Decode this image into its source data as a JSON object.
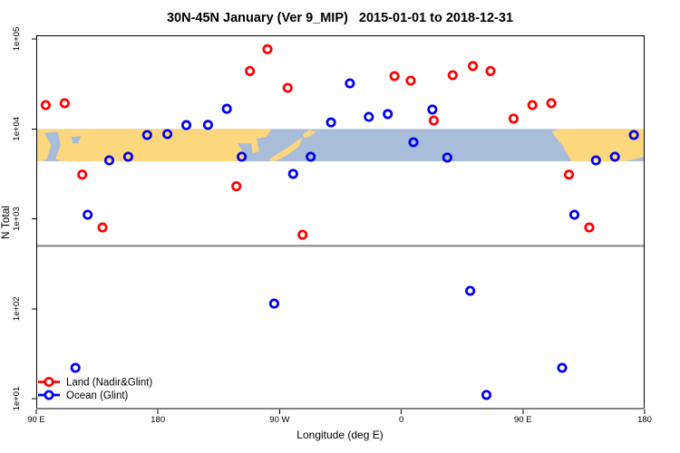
{
  "title": "30N-45N January (Ver 9_MIP)   2015-01-01 to 2018-12-31",
  "chart_data": {
    "type": "scatter",
    "xlabel": "Longitude (deg E)",
    "ylabel": "N Total",
    "y_scale": "log",
    "x_axis": {
      "min_deg": 90,
      "max_deg": 540,
      "ticks": [
        {
          "axis_deg": 90,
          "label": "90 E"
        },
        {
          "axis_deg": 180,
          "label": "180"
        },
        {
          "axis_deg": 270,
          "label": "90 W"
        },
        {
          "axis_deg": 360,
          "label": "0"
        },
        {
          "axis_deg": 450,
          "label": "90 E"
        },
        {
          "axis_deg": 540,
          "label": "180"
        }
      ]
    },
    "y_axis": {
      "ticks": [
        {
          "value": 100000,
          "label": "1e+05"
        },
        {
          "value": 10000,
          "label": "1e+04"
        },
        {
          "value": 1000,
          "label": "1e+03"
        },
        {
          "value": 100,
          "label": "1e+02"
        },
        {
          "value": 10,
          "label": "1e+01"
        }
      ]
    },
    "reference_line": {
      "value": 500,
      "color": "#808080"
    },
    "axis_colors": {
      "box": "#000000",
      "baseline": "#808080"
    },
    "series": [
      {
        "name": "Land (Nadir&Glint)",
        "color": "#ff0000",
        "points": [
          {
            "x_deg": 97,
            "value": 18400
          },
          {
            "x_deg": 111,
            "value": 19300
          },
          {
            "x_deg": 124,
            "value": 3100
          },
          {
            "x_deg": 139,
            "value": 800
          },
          {
            "x_deg": 238,
            "value": 2300
          },
          {
            "x_deg": 248,
            "value": 44000
          },
          {
            "x_deg": 261,
            "value": 77000
          },
          {
            "x_deg": 276,
            "value": 28600
          },
          {
            "x_deg": 287,
            "value": 665
          },
          {
            "x_deg": 355,
            "value": 38600
          },
          {
            "x_deg": 367,
            "value": 34400
          },
          {
            "x_deg": 384,
            "value": 12400
          },
          {
            "x_deg": 398,
            "value": 39500
          },
          {
            "x_deg": 413,
            "value": 50000
          },
          {
            "x_deg": 426,
            "value": 44000
          },
          {
            "x_deg": 443,
            "value": 13000
          },
          {
            "x_deg": 457,
            "value": 18400
          },
          {
            "x_deg": 471,
            "value": 19300
          },
          {
            "x_deg": 484,
            "value": 3100
          },
          {
            "x_deg": 499,
            "value": 800
          }
        ]
      },
      {
        "name": "Ocean (Glint)",
        "color": "#0000ee",
        "points": [
          {
            "x_deg": 119,
            "value": 22
          },
          {
            "x_deg": 128,
            "value": 1110
          },
          {
            "x_deg": 144,
            "value": 4470
          },
          {
            "x_deg": 158,
            "value": 4900
          },
          {
            "x_deg": 172,
            "value": 8550
          },
          {
            "x_deg": 187,
            "value": 8750
          },
          {
            "x_deg": 201,
            "value": 11000
          },
          {
            "x_deg": 217,
            "value": 11100
          },
          {
            "x_deg": 231,
            "value": 16700
          },
          {
            "x_deg": 242,
            "value": 4900
          },
          {
            "x_deg": 266,
            "value": 114
          },
          {
            "x_deg": 280,
            "value": 3160
          },
          {
            "x_deg": 293,
            "value": 4900
          },
          {
            "x_deg": 308,
            "value": 11800
          },
          {
            "x_deg": 322,
            "value": 32100
          },
          {
            "x_deg": 336,
            "value": 13600
          },
          {
            "x_deg": 350,
            "value": 14600
          },
          {
            "x_deg": 369,
            "value": 7100
          },
          {
            "x_deg": 383,
            "value": 16400
          },
          {
            "x_deg": 394,
            "value": 4800
          },
          {
            "x_deg": 411,
            "value": 158
          },
          {
            "x_deg": 423,
            "value": 11
          },
          {
            "x_deg": 479,
            "value": 22
          },
          {
            "x_deg": 488,
            "value": 1110
          },
          {
            "x_deg": 504,
            "value": 4470
          },
          {
            "x_deg": 518,
            "value": 4900
          },
          {
            "x_deg": 532,
            "value": 8550
          }
        ]
      }
    ],
    "map_band": {
      "top_value": 10000,
      "bottom_value": 4365,
      "land_color": "#fcd77e",
      "ocean_color": "#a9bcd9",
      "polygons": [
        {
          "name": "eurasia-landmass",
          "fill": "land",
          "pts": [
            [
              -10,
              0.3
            ],
            [
              -6,
              0.05
            ],
            [
              5,
              0
            ],
            [
              132,
              0
            ],
            [
              130,
              0.25
            ],
            [
              126.5,
              0.3
            ],
            [
              127.5,
              0.7
            ],
            [
              125,
              0.75
            ],
            [
              124.5,
              0.45
            ],
            [
              119.5,
              0.45
            ],
            [
              122,
              0.8
            ],
            [
              121,
              1
            ],
            [
              -7.5,
              1
            ]
          ]
        },
        {
          "name": "north-america",
          "fill": "land",
          "pts": [
            [
              -124.5,
              0.08
            ],
            [
              -121,
              0
            ],
            [
              -67.5,
              0
            ],
            [
              -70,
              0.3
            ],
            [
              -76,
              0.65
            ],
            [
              -80,
              1
            ],
            [
              -117,
              1
            ],
            [
              -120.5,
              0.5
            ],
            [
              -123,
              0.25
            ]
          ]
        },
        {
          "name": "mediterranean-sea",
          "fill": "ocean",
          "pts": [
            [
              -5,
              0.5
            ],
            [
              3,
              0.42
            ],
            [
              10,
              0.5
            ],
            [
              12,
              0.68
            ],
            [
              16,
              0.55
            ],
            [
              20,
              0.68
            ],
            [
              26,
              0.5
            ],
            [
              33,
              0.52
            ],
            [
              36,
              0.65
            ],
            [
              36.5,
              0.95
            ],
            [
              24,
              1
            ],
            [
              10,
              1
            ],
            [
              0,
              0.92
            ],
            [
              -5.5,
              0.7
            ]
          ]
        },
        {
          "name": "black-sea",
          "fill": "ocean",
          "pts": [
            [
              27,
              0.12
            ],
            [
              34,
              0.04
            ],
            [
              42,
              0.12
            ],
            [
              40,
              0.35
            ],
            [
              30,
              0.3
            ]
          ]
        },
        {
          "name": "caspian-sea",
          "fill": "ocean",
          "pts": [
            [
              48,
              0.12
            ],
            [
              53,
              0.1
            ],
            [
              54,
              0.5
            ],
            [
              52,
              0.95
            ],
            [
              49,
              0.9
            ],
            [
              50.5,
              0.5
            ]
          ]
        },
        {
          "name": "aral-sea",
          "fill": "ocean",
          "pts": [
            [
              58,
              0.25
            ],
            [
              61.5,
              0.22
            ],
            [
              60.5,
              0.45
            ],
            [
              58.5,
              0.45
            ]
          ]
        },
        {
          "name": "persian-gulf",
          "fill": "ocean",
          "pts": [
            [
              47.5,
              1
            ],
            [
              50.5,
              0.85
            ],
            [
              54,
              1
            ]
          ]
        },
        {
          "name": "gulf-of-mexico",
          "fill": "ocean",
          "pts": [
            [
              -97,
              1
            ],
            [
              -90,
              0.86
            ],
            [
              -83,
              1
            ]
          ]
        },
        {
          "name": "great-lakes",
          "fill": "ocean",
          "pts": [
            [
              -88,
              0
            ],
            [
              -76.5,
              0
            ],
            [
              -78.5,
              0.28
            ],
            [
              -86,
              0.25
            ]
          ]
        },
        {
          "name": "italy",
          "fill": "land",
          "pts": [
            [
              11,
              0.4
            ],
            [
              13.5,
              0.45
            ],
            [
              16.5,
              0.72
            ],
            [
              14.5,
              0.8
            ],
            [
              11.8,
              0.52
            ]
          ]
        },
        {
          "name": "greece",
          "fill": "land",
          "pts": [
            [
              20.5,
              0.42
            ],
            [
              24,
              0.42
            ],
            [
              23,
              0.68
            ],
            [
              21,
              0.68
            ]
          ]
        },
        {
          "name": "japan",
          "fill": "land",
          "pts": [
            [
              131,
              0.95
            ],
            [
              134,
              0.78
            ],
            [
              138,
              0.58
            ],
            [
              142,
              0.33
            ],
            [
              143.5,
              0.28
            ],
            [
              142,
              0.55
            ],
            [
              138,
              0.8
            ],
            [
              134,
              0.98
            ],
            [
              132,
              1
            ]
          ]
        },
        {
          "name": "hokkaido",
          "fill": "land",
          "pts": [
            [
              143.5,
              0.18
            ],
            [
              146,
              0.03
            ],
            [
              148.5,
              0.08
            ],
            [
              146.5,
              0.22
            ],
            [
              144.2,
              0.28
            ]
          ]
        }
      ]
    }
  },
  "legend": {
    "items": [
      {
        "label": "Land (Nadir&Glint)",
        "color": "#ff0000"
      },
      {
        "label": "Ocean (Glint)",
        "color": "#0000ee"
      }
    ]
  }
}
